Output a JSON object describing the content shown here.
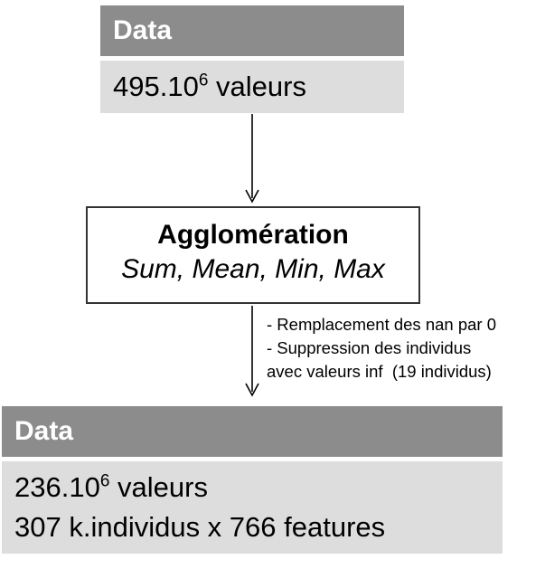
{
  "top_block": {
    "header": "Data",
    "value_base": "495.10",
    "value_exp": "6",
    "value_unit": " valeurs"
  },
  "agglomeration": {
    "title": "Agglomération",
    "subtitle": "Sum, Mean, Min, Max"
  },
  "notes": [
    "- Remplacement des nan par 0",
    "- Suppression des individus",
    "avec valeurs inf  (19 individus)"
  ],
  "bottom_block": {
    "header": "Data",
    "value_base": "236.10",
    "value_exp": "6",
    "value_unit": " valeurs",
    "line2": "307 k.individus x 766 features"
  }
}
